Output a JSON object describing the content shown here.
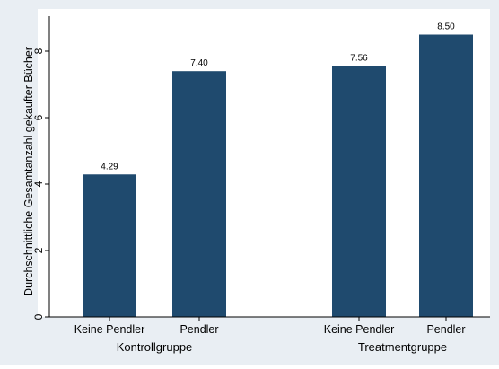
{
  "chart_data": {
    "type": "bar",
    "title": "",
    "ylabel": "Durchschnittliche Gesamtanzahl gekaufter Bücher",
    "ylim": [
      0,
      9
    ],
    "yticks": [
      0,
      2,
      4,
      6,
      8
    ],
    "grid": false,
    "groups": [
      {
        "label": "Kontrollgruppe",
        "categories": [
          "Keine Pendler",
          "Pendler"
        ],
        "values": [
          4.29,
          7.4
        ],
        "value_labels": [
          "4.29",
          "7.40"
        ]
      },
      {
        "label": "Treatmentgruppe",
        "categories": [
          "Keine Pendler",
          "Pendler"
        ],
        "values": [
          7.56,
          8.5
        ],
        "value_labels": [
          "7.56",
          "8.50"
        ]
      }
    ],
    "colors": {
      "outer_background": "#e9eef3",
      "plot_background": "#ffffff",
      "bar": "#1f4a6e",
      "text": "#000000"
    }
  }
}
